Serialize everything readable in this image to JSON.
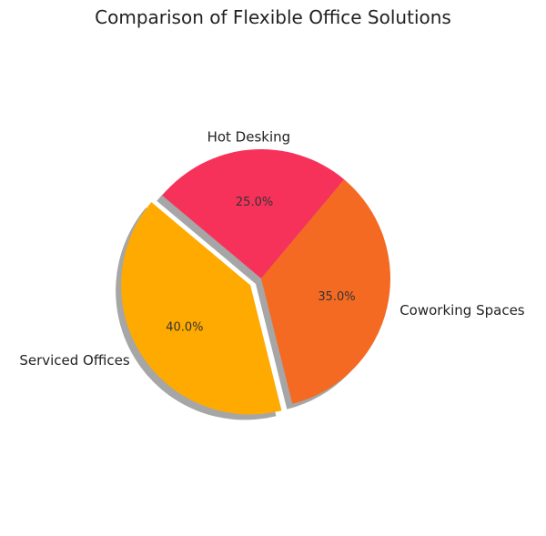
{
  "chart_data": {
    "type": "pie",
    "title": "Comparison of Flexible Office Solutions",
    "slices": [
      {
        "label": "Hot Desking",
        "value": 25.0,
        "pct_label": "25.0%",
        "color": "#F7325A"
      },
      {
        "label": "Coworking Spaces",
        "value": 35.0,
        "pct_label": "35.0%",
        "color": "#F46A22"
      },
      {
        "label": "Serviced Offices",
        "value": 40.0,
        "pct_label": "40.0%",
        "color": "#FFAA00",
        "exploded": true
      }
    ],
    "shadow": true,
    "start_angle_deg": 140,
    "direction": "clockwise"
  }
}
